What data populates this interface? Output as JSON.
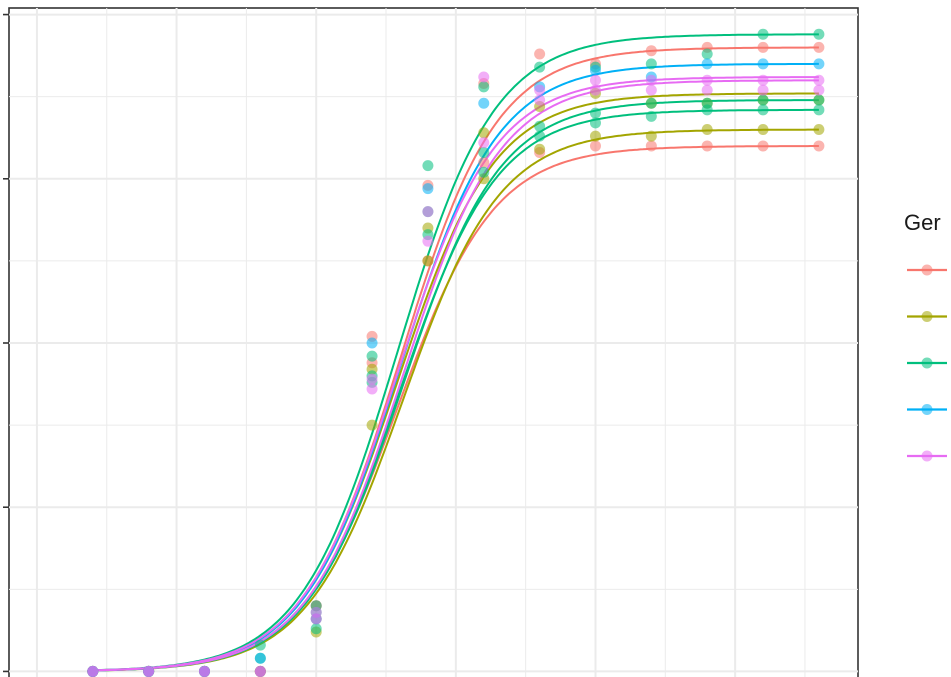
{
  "legend": {
    "title": "Ger",
    "entries": [
      {
        "color": "#F8766D"
      },
      {
        "color": "#A3A500"
      },
      {
        "color": "#00BF7D"
      },
      {
        "color": "#00B0F6"
      },
      {
        "color": "#E76BF3"
      }
    ]
  },
  "chart_data": {
    "type": "scatter",
    "title": "",
    "xlabel": "",
    "ylabel": "",
    "grid": true,
    "legend_position": "right",
    "xlim": [
      0.5,
      15.7
    ],
    "ylim": [
      -0.2,
      20.2
    ],
    "x": [
      2,
      3,
      4,
      5,
      6,
      7,
      8,
      9,
      10,
      11,
      12,
      13,
      14,
      15
    ],
    "series": [
      {
        "color": "#F8766D",
        "values": [
          0,
          0,
          0,
          0,
          2.0,
          10.2,
          12.5,
          15.5,
          15.8,
          16.0,
          16.0,
          16.0,
          16.0,
          16.0
        ]
      },
      {
        "color": "#F8766D",
        "values": [
          0,
          0,
          0,
          0,
          2.0,
          9.4,
          14.8,
          17.9,
          18.8,
          18.5,
          18.9,
          19.0,
          19.0,
          19.0
        ]
      },
      {
        "color": "#A3A500",
        "values": [
          0,
          0,
          0,
          0,
          1.2,
          7.5,
          12.5,
          15.0,
          15.9,
          16.3,
          16.3,
          16.5,
          16.5,
          16.5
        ]
      },
      {
        "color": "#A3A500",
        "values": [
          0,
          0,
          0,
          0,
          1.6,
          9.2,
          13.5,
          16.4,
          17.2,
          17.6,
          17.3,
          17.3,
          17.4,
          17.4
        ]
      },
      {
        "color": "#00BF7D",
        "values": [
          0,
          0,
          0,
          0.8,
          1.3,
          9.6,
          14.0,
          15.2,
          16.3,
          16.7,
          16.9,
          17.1,
          17.1,
          17.1
        ]
      },
      {
        "color": "#00BF7D",
        "values": [
          0,
          0,
          0,
          0.4,
          2.0,
          8.8,
          13.3,
          15.8,
          16.6,
          17.0,
          17.3,
          17.3,
          17.4,
          17.4
        ]
      },
      {
        "color": "#00BF7D",
        "values": [
          0,
          0,
          0,
          0,
          1.8,
          9.0,
          15.4,
          17.8,
          18.4,
          18.4,
          18.5,
          18.8,
          19.4,
          19.4
        ]
      },
      {
        "color": "#00B0F6",
        "values": [
          0,
          0,
          0,
          0.4,
          1.6,
          10.0,
          14.7,
          17.3,
          17.8,
          18.3,
          18.1,
          18.5,
          18.5,
          18.5
        ]
      },
      {
        "color": "#E76BF3",
        "values": [
          0,
          0,
          0,
          0,
          1.8,
          8.6,
          13.1,
          16.1,
          17.7,
          18.0,
          18.0,
          18.0,
          18.0,
          18.0
        ]
      },
      {
        "color": "#E76BF3",
        "values": [
          0,
          0,
          0,
          0,
          1.6,
          8.9,
          14.0,
          18.1,
          17.4,
          17.7,
          17.7,
          17.7,
          17.7,
          17.7
        ]
      }
    ]
  }
}
